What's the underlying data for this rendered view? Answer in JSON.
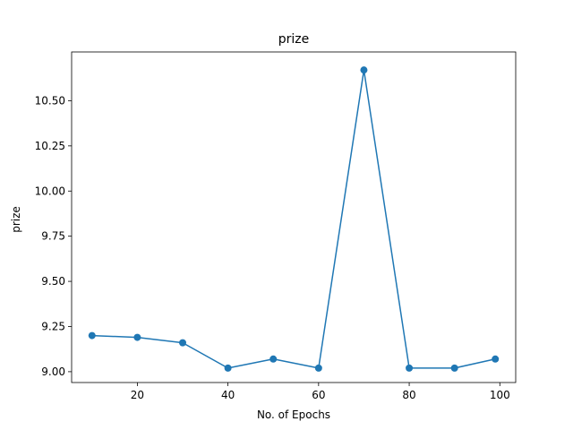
{
  "chart_data": {
    "type": "line",
    "title": "prize",
    "xlabel": "No. of Epochs",
    "ylabel": "prize",
    "xlim": [
      5.5,
      103.5
    ],
    "ylim": [
      8.94,
      10.77
    ],
    "xticks": [
      20,
      40,
      60,
      80,
      100
    ],
    "yticks": [
      9.0,
      9.25,
      9.5,
      9.75,
      10.0,
      10.25,
      10.5
    ],
    "xtick_labels": [
      "20",
      "40",
      "60",
      "80",
      "100"
    ],
    "ytick_labels": [
      "9.00",
      "9.25",
      "9.50",
      "9.75",
      "10.00",
      "10.25",
      "10.50"
    ],
    "grid": false,
    "series": [
      {
        "color": "#1f77b4",
        "marker": "circle",
        "x": [
          10,
          20,
          30,
          40,
          50,
          60,
          70,
          80,
          90,
          99
        ],
        "y": [
          9.2,
          9.19,
          9.16,
          9.02,
          9.07,
          9.02,
          10.67,
          9.02,
          9.02,
          9.07
        ]
      }
    ]
  }
}
